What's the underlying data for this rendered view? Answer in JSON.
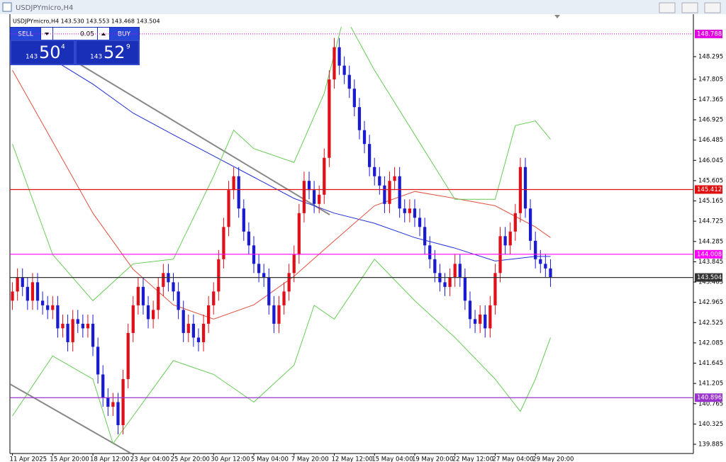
{
  "window_title": "USDJPYmicro,H4",
  "info_line": "USDJPYmicro,H4  143.530 143.553 143.468 143.504",
  "trade_panel": {
    "sell": "SELL",
    "lots": "0.05",
    "buy": "BUY",
    "bid": {
      "prefix": "143",
      "big": "50",
      "point": "4"
    },
    "ask": {
      "prefix": "143",
      "big": "52",
      "point": "9"
    }
  },
  "chart_data": {
    "type": "candlestick",
    "categories": [
      "11 Apr 2025",
      null,
      null,
      null,
      null,
      null,
      null,
      null,
      "15 Apr 20:00",
      null,
      null,
      null,
      null,
      null,
      null,
      null,
      "18 Apr 12:00",
      null,
      null,
      null,
      null,
      null,
      null,
      null,
      "23 Apr 04:00",
      null,
      null,
      null,
      null,
      null,
      null,
      null,
      "25 Apr 20:00",
      null,
      null,
      null,
      null,
      null,
      null,
      null,
      "30 Apr 12:00",
      null,
      null,
      null,
      null,
      null,
      null,
      null,
      "5 May 04:00",
      null,
      null,
      null,
      null,
      null,
      null,
      null,
      "7 May 20:00",
      null,
      null,
      null,
      null,
      null,
      null,
      null,
      "12 May 12:00",
      null,
      null,
      null,
      null,
      null,
      null,
      null,
      "15 May 04:00",
      null,
      null,
      null,
      null,
      null,
      null,
      null,
      "19 May 20:00",
      null,
      null,
      null,
      null,
      null,
      null,
      null,
      "22 May 12:00",
      null,
      null,
      null,
      null,
      null,
      null,
      null,
      "27 May 04:00",
      null,
      null,
      null,
      null,
      null,
      null,
      null,
      "29 May 20:00",
      null,
      null,
      null
    ],
    "open": [
      143.0,
      143.2,
      143.5,
      143.3,
      143.0,
      143.4,
      143.0,
      142.9,
      142.8,
      142.9,
      142.4,
      142.5,
      142.1,
      142.6,
      142.5,
      142.4,
      142.5,
      142.0,
      141.4,
      140.9,
      140.7,
      140.8,
      140.3,
      141.3,
      142.3,
      142.9,
      143.3,
      142.9,
      142.6,
      142.8,
      143.3,
      143.6,
      143.4,
      143.2,
      142.8,
      142.3,
      142.5,
      142.2,
      142.1,
      142.5,
      142.9,
      143.2,
      143.9,
      144.6,
      145.4,
      145.7,
      145.0,
      144.5,
      144.2,
      143.8,
      143.6,
      143.5,
      142.9,
      142.5,
      142.9,
      143.2,
      143.6,
      144.0,
      144.9,
      145.6,
      145.4,
      145.1,
      145.3,
      146.1,
      147.8,
      148.5,
      148.1,
      147.9,
      147.6,
      147.2,
      146.7,
      146.4,
      145.9,
      145.7,
      145.5,
      145.1,
      145.6,
      145.7,
      145.0,
      144.9,
      145.0,
      144.8,
      144.6,
      144.2,
      143.9,
      143.6,
      143.4,
      143.3,
      143.5,
      143.8,
      143.5,
      143.0,
      142.6,
      142.5,
      142.7,
      142.4,
      142.9,
      143.6,
      144.4,
      144.2,
      144.5,
      144.9,
      145.9,
      145.0,
      144.3,
      143.9,
      143.8,
      143.7
    ],
    "high": [
      143.4,
      143.7,
      143.7,
      143.5,
      143.6,
      143.6,
      143.2,
      143.1,
      143.1,
      143.1,
      142.7,
      142.7,
      142.8,
      142.8,
      142.7,
      142.7,
      142.7,
      142.2,
      141.6,
      141.1,
      141.0,
      141.0,
      141.5,
      142.5,
      143.1,
      143.5,
      143.5,
      143.1,
      143.0,
      143.5,
      143.8,
      143.8,
      143.6,
      143.4,
      143.0,
      142.7,
      142.7,
      142.4,
      142.7,
      143.1,
      143.4,
      144.1,
      144.8,
      145.6,
      145.9,
      145.9,
      145.2,
      144.7,
      144.4,
      144.0,
      143.8,
      143.7,
      143.1,
      143.1,
      143.4,
      143.8,
      144.2,
      145.1,
      145.8,
      145.8,
      145.6,
      145.5,
      146.3,
      148.0,
      148.7,
      148.7,
      148.3,
      148.1,
      147.8,
      147.4,
      146.9,
      146.6,
      146.1,
      145.9,
      145.7,
      145.8,
      145.9,
      145.9,
      145.2,
      145.2,
      145.2,
      145.0,
      144.8,
      144.4,
      144.1,
      143.8,
      143.6,
      143.7,
      144.0,
      144.0,
      143.7,
      143.2,
      142.8,
      142.9,
      142.9,
      143.1,
      143.8,
      144.6,
      144.6,
      144.7,
      145.1,
      146.1,
      146.1,
      145.2,
      144.5,
      144.1,
      144.0,
      143.9
    ],
    "low": [
      142.8,
      143.0,
      143.1,
      142.8,
      142.8,
      142.8,
      142.7,
      142.6,
      142.6,
      142.2,
      142.2,
      141.9,
      141.9,
      142.3,
      142.2,
      142.2,
      141.8,
      141.2,
      140.7,
      140.5,
      140.5,
      140.1,
      140.1,
      141.1,
      142.1,
      142.7,
      142.7,
      142.4,
      142.4,
      142.6,
      143.1,
      143.2,
      143.0,
      142.6,
      142.1,
      142.1,
      142.0,
      141.9,
      141.9,
      142.3,
      142.7,
      143.0,
      143.7,
      144.4,
      145.2,
      144.8,
      144.3,
      144.0,
      143.6,
      143.4,
      143.3,
      142.7,
      142.3,
      142.3,
      142.7,
      143.0,
      143.4,
      143.8,
      144.7,
      145.2,
      144.9,
      144.9,
      145.1,
      145.9,
      147.6,
      147.9,
      147.7,
      147.4,
      147.0,
      146.5,
      146.2,
      145.7,
      145.5,
      145.3,
      144.9,
      144.9,
      145.4,
      144.8,
      144.7,
      144.7,
      144.6,
      144.4,
      144.0,
      143.7,
      143.4,
      143.2,
      143.1,
      143.1,
      143.3,
      143.3,
      142.8,
      142.4,
      142.3,
      142.3,
      142.2,
      142.2,
      142.7,
      143.4,
      144.0,
      144.0,
      144.3,
      144.7,
      144.8,
      144.1,
      143.7,
      143.6,
      143.5,
      143.3
    ],
    "close": [
      143.2,
      143.5,
      143.3,
      143.0,
      143.4,
      143.0,
      142.9,
      142.8,
      142.9,
      142.4,
      142.5,
      142.1,
      142.6,
      142.5,
      142.4,
      142.5,
      142.0,
      141.4,
      140.9,
      140.7,
      140.8,
      140.3,
      141.3,
      142.3,
      142.9,
      143.3,
      142.9,
      142.6,
      142.8,
      143.3,
      143.6,
      143.4,
      143.2,
      142.8,
      142.3,
      142.5,
      142.2,
      142.1,
      142.5,
      142.9,
      143.2,
      143.9,
      144.6,
      145.4,
      145.7,
      145.0,
      144.5,
      144.2,
      143.8,
      143.6,
      143.5,
      142.9,
      142.5,
      142.9,
      143.2,
      143.6,
      144.0,
      144.9,
      145.6,
      145.4,
      145.1,
      145.3,
      146.1,
      147.8,
      148.5,
      148.1,
      147.9,
      147.6,
      147.2,
      146.7,
      146.4,
      145.9,
      145.7,
      145.5,
      145.1,
      145.6,
      145.7,
      145.0,
      144.9,
      145.0,
      144.8,
      144.6,
      144.2,
      143.9,
      143.6,
      143.4,
      143.3,
      143.5,
      143.8,
      143.5,
      143.0,
      142.6,
      142.5,
      142.7,
      142.4,
      142.9,
      143.6,
      144.4,
      144.2,
      144.5,
      144.9,
      145.9,
      145.0,
      144.3,
      143.9,
      143.8,
      143.7,
      143.5
    ],
    "up_color": "#e0101a",
    "down_color": "#1a1ad0",
    "ylim": [
      139.685,
      148.94
    ],
    "yticks": [
      148.295,
      147.805,
      147.365,
      146.925,
      146.485,
      146.045,
      145.605,
      145.165,
      144.725,
      144.285,
      143.845,
      143.405,
      142.965,
      142.525,
      142.085,
      141.645,
      141.205,
      140.765,
      140.325,
      139.885
    ],
    "overlays": [
      {
        "color": "#1f2fd8",
        "x": [
          6,
          16,
          24,
          32,
          40,
          48,
          56,
          64,
          72,
          80,
          88,
          96,
          104,
          107
        ],
        "values": [
          148.37,
          147.7,
          147.07,
          146.6,
          146.14,
          145.68,
          145.22,
          144.9,
          144.68,
          144.37,
          144.14,
          143.86,
          143.96,
          143.96
        ]
      },
      {
        "color": "#e05040",
        "x": [
          0,
          8,
          16,
          24,
          32,
          40,
          48,
          56,
          64,
          72,
          80,
          88,
          96,
          104,
          107
        ],
        "values": [
          148.0,
          146.45,
          144.9,
          143.68,
          142.91,
          142.6,
          142.91,
          143.53,
          144.3,
          145.06,
          145.37,
          145.22,
          145.06,
          144.6,
          144.37
        ]
      },
      {
        "color": "#66cc55",
        "x": [
          0,
          8,
          16,
          24,
          32,
          40,
          44,
          48,
          56,
          62,
          66,
          72,
          80,
          88,
          96,
          100,
          104,
          107
        ],
        "values": [
          146.4,
          144.0,
          143.0,
          143.8,
          143.9,
          145.7,
          146.7,
          146.3,
          146.0,
          147.5,
          149.2,
          148.0,
          146.6,
          145.2,
          145.2,
          146.8,
          146.9,
          146.5
        ]
      },
      {
        "color": "#66cc55",
        "x": [
          0,
          8,
          16,
          20,
          24,
          32,
          40,
          48,
          56,
          60,
          64,
          72,
          80,
          88,
          96,
          101,
          104,
          107
        ],
        "values": [
          140.5,
          141.8,
          141.3,
          139.9,
          140.5,
          141.7,
          141.4,
          140.8,
          141.6,
          142.9,
          142.6,
          143.9,
          143.0,
          142.2,
          141.3,
          140.6,
          141.3,
          142.2
        ]
      }
    ],
    "levels": [
      {
        "value": 148.788,
        "color": "#e000e0",
        "dash": true
      },
      {
        "value": 145.412,
        "color": "#e01010",
        "dash": false
      },
      {
        "value": 144.008,
        "color": "#ff00ff",
        "dash": false
      },
      {
        "value": 143.504,
        "color": "#333333",
        "dash": false
      },
      {
        "value": 140.896,
        "color": "#9933cc",
        "dash": false
      }
    ]
  }
}
